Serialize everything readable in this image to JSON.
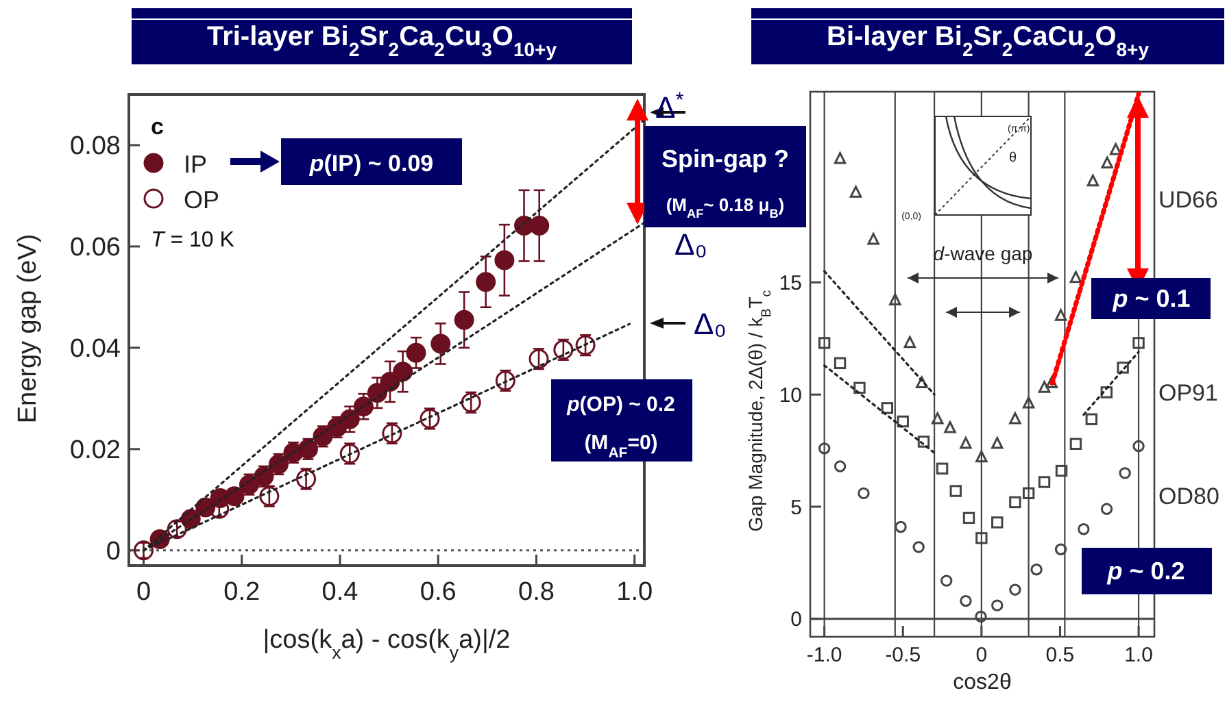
{
  "chart_data": [
    {
      "type": "scatter",
      "title": "Tri-layer  Bi$_{2}$Sr$_{2}$Ca$_{2}$Cu$_{3}$O$_{10+y}$",
      "xlabel": "|cos(k$_{x}$a) - cos(k$_{y}$a)|/2",
      "ylabel": "Energy gap (eV)",
      "xlim": [
        -0.03,
        1.02
      ],
      "ylim": [
        -0.003,
        0.09
      ],
      "xticks": [
        0,
        0.2,
        0.4,
        0.6,
        0.8,
        {
          "value": 1,
          "label": "1.0"
        }
      ],
      "yticks": [
        0,
        0.02,
        0.04,
        0.06,
        0.08
      ],
      "legend": "top left",
      "ref_lines": [
        {
          "axis": "y",
          "value": 0,
          "line_style": "dotted",
          "color": "#555555"
        }
      ],
      "annotations": [
        "c",
        "T = 10 K",
        "p(IP) ~ 0.09",
        "Spin-gap ?",
        "(M$_{AF}$~ 0.18 μ$_{B}$)",
        "p(OP) ~ 0.2",
        "(M$_{AF}$=0)",
        "Δ$^{*}$",
        "Δ₀",
        "Δ₀"
      ],
      "series": [
        {
          "name": "IP",
          "type": "scatter",
          "marker": "circle",
          "color": "#6b1020",
          "x": [
            0.033,
            0.096,
            0.126,
            0.156,
            0.185,
            0.215,
            0.245,
            0.275,
            0.305,
            0.335,
            0.365,
            0.394,
            0.42,
            0.448,
            0.476,
            0.502,
            0.528,
            0.555,
            0.605,
            0.653,
            0.697,
            0.735,
            0.775,
            0.806
          ],
          "values": [
            0.0022,
            0.0062,
            0.0085,
            0.0103,
            0.0107,
            0.013,
            0.0146,
            0.017,
            0.0193,
            0.02,
            0.0225,
            0.0243,
            0.0259,
            0.0284,
            0.0311,
            0.0333,
            0.0353,
            0.039,
            0.0408,
            0.0455,
            0.053,
            0.0573,
            0.0641,
            0.0641
          ],
          "errors": [
            0.0015,
            0.0015,
            0.0015,
            0.0015,
            0.0015,
            0.002,
            0.002,
            0.002,
            0.002,
            0.002,
            0.002,
            0.002,
            0.0025,
            0.0025,
            0.003,
            0.004,
            0.004,
            0.003,
            0.004,
            0.0055,
            0.005,
            0.007,
            0.007,
            0.007
          ]
        },
        {
          "name": "OP",
          "type": "scatter",
          "marker": "circle",
          "color": "#6b1020",
          "x": [
            0.0,
            0.068,
            0.154,
            0.256,
            0.331,
            0.42,
            0.506,
            0.583,
            0.667,
            0.737,
            0.805,
            0.855,
            0.9
          ],
          "values": [
            0.0,
            0.0042,
            0.0082,
            0.0107,
            0.0141,
            0.0191,
            0.0231,
            0.026,
            0.0292,
            0.0335,
            0.0378,
            0.0396,
            0.0405
          ],
          "errors": [
            0.0015,
            0.0015,
            0.0015,
            0.002,
            0.002,
            0.002,
            0.002,
            0.002,
            0.002,
            0.002,
            0.002,
            0.002,
            0.002
          ]
        },
        {
          "type": "line",
          "color": "#222222",
          "line_style": "dotted",
          "x": [
            0,
            1.02
          ],
          "values": [
            0,
            0.085
          ]
        },
        {
          "type": "line",
          "color": "#222222",
          "line_style": "dotted",
          "x": [
            0,
            1.02
          ],
          "values": [
            0,
            0.0647
          ]
        },
        {
          "type": "line",
          "color": "#222222",
          "line_style": "dotted",
          "x": [
            0,
            0.99
          ],
          "values": [
            0,
            0.0447
          ]
        }
      ]
    },
    {
      "type": "scatter",
      "title": "Bi-layer  Bi$_{2}$Sr$_{2}$CaCu$_{2}$O$_{8+y}$",
      "xlabel": "cos2θ",
      "ylabel": "Gap Magnitude, 2Δ(θ) / k$_{B}$T$_{c}$",
      "xlim": [
        -1.09,
        1.1
      ],
      "ylim": [
        -0.8,
        23.5
      ],
      "xticks": [
        {
          "value": -1,
          "label": "-1.0"
        },
        {
          "value": -0.5,
          "label": "-0.5"
        },
        0,
        0.5,
        {
          "value": 1,
          "label": "1.0"
        }
      ],
      "yticks": [
        0,
        5,
        10,
        15
      ],
      "ref_lines": [
        {
          "axis": "y",
          "value": 0
        },
        {
          "axis": "x",
          "value": -1
        },
        {
          "axis": "x",
          "value": -0.55
        },
        {
          "axis": "x",
          "value": -0.3
        },
        {
          "axis": "x",
          "value": 0
        },
        {
          "axis": "x",
          "value": 0.3
        },
        {
          "axis": "x",
          "value": 0.53
        },
        {
          "axis": "x",
          "value": 1
        }
      ],
      "annotations": [
        "d-wave gap",
        "(π,π)",
        "θ",
        "(0,0)",
        "p ~ 0.1",
        "p ~ 0.2"
      ],
      "series": [
        {
          "name": "UD66",
          "type": "scatter",
          "marker": "triangle",
          "color": "#444444",
          "x": [
            -0.9,
            -0.8,
            -0.688,
            -0.55,
            -0.456,
            -0.38,
            -0.28,
            -0.2,
            -0.1,
            0,
            0.1,
            0.214,
            0.3,
            0.4,
            0.447,
            0.505,
            0.6,
            0.709,
            0.8,
            0.854
          ],
          "values": [
            20.5,
            19,
            16.9,
            14.2,
            12.3,
            10.5,
            8.9,
            8.5,
            7.8,
            7.2,
            7.8,
            8.9,
            9.6,
            10.3,
            10.5,
            13.5,
            15.2,
            19.5,
            20.3,
            20.9
          ]
        },
        {
          "name": "OP91",
          "type": "scatter",
          "marker": "square",
          "color": "#444444",
          "x": [
            -1,
            -0.9,
            -0.776,
            -0.6,
            -0.5,
            -0.368,
            -0.25,
            -0.164,
            -0.08,
            0,
            0.1,
            0.214,
            0.3,
            0.4,
            0.509,
            0.6,
            0.7,
            0.796,
            0.9,
            1
          ],
          "values": [
            12.3,
            11.4,
            10.3,
            9.4,
            8.8,
            7.9,
            6.7,
            5.7,
            4.5,
            3.6,
            4.3,
            5.2,
            5.6,
            6.1,
            6.6,
            7.8,
            8.9,
            10.1,
            11.2,
            12.3
          ]
        },
        {
          "name": "OD80",
          "type": "scatter",
          "marker": "circle",
          "color": "#444444",
          "x": [
            -1,
            -0.9,
            -0.75,
            -0.514,
            -0.4,
            -0.223,
            -0.1,
            -0.004,
            0.1,
            0.214,
            0.35,
            0.505,
            0.65,
            0.797,
            0.913,
            1
          ],
          "values": [
            7.6,
            6.8,
            5.6,
            4.1,
            3.2,
            1.7,
            0.8,
            0.1,
            0.6,
            1.3,
            2.2,
            3.1,
            4.0,
            4.9,
            6.5,
            7.7
          ]
        },
        {
          "type": "line",
          "color": "#ff0000",
          "line_style": "dotted",
          "x": [
            0.45,
            1.0
          ],
          "values": [
            10.5,
            23.4
          ]
        },
        {
          "type": "line",
          "color": "#222222",
          "line_style": "dotted",
          "x": [
            -1,
            -0.3
          ],
          "values": [
            15.5,
            10
          ]
        },
        {
          "type": "line",
          "color": "#222222",
          "line_style": "dotted",
          "x": [
            -1,
            -0.3
          ],
          "values": [
            11.3,
            7.4
          ]
        },
        {
          "type": "line",
          "color": "#222222",
          "line_style": "dotted",
          "x": [
            0.65,
            1.0
          ],
          "values": [
            9.1,
            11.9
          ]
        }
      ]
    }
  ]
}
